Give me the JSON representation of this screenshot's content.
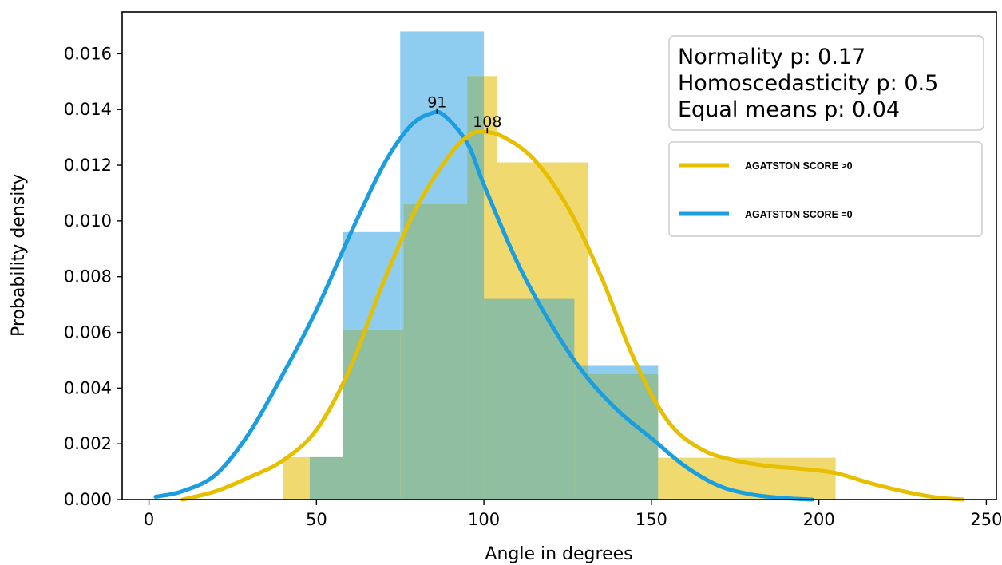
{
  "chart_data": {
    "type": "histogram",
    "xlabel": "Angle in degrees",
    "ylabel": "Probability density",
    "xlim": [
      -8,
      253
    ],
    "ylim": [
      0,
      0.0175
    ],
    "xticks": [
      0,
      50,
      100,
      150,
      200,
      250
    ],
    "yticks": [
      0.0,
      0.002,
      0.004,
      0.006,
      0.008,
      0.01,
      0.012,
      0.014,
      0.016
    ],
    "grid": false,
    "legend_position": "right",
    "stats": [
      "Normality p: 0.17",
      "Homoscedasticity p: 0.5",
      "Equal means p: 0.04"
    ],
    "series": [
      {
        "name": "AGATSTON SCORE =0",
        "color": "#1a9ee0",
        "bar_color": "#8ecdf0",
        "bins": [
          {
            "x0": 48,
            "x1": 58,
            "density": 0.00152
          },
          {
            "x0": 58,
            "x1": 75,
            "density": 0.0096
          },
          {
            "x0": 75,
            "x1": 100,
            "density": 0.0168
          },
          {
            "x0": 100,
            "x1": 127,
            "density": 0.0072
          },
          {
            "x0": 127,
            "x1": 152,
            "density": 0.0048
          }
        ],
        "kde": [
          [
            2,
            0.0001
          ],
          [
            10,
            0.0003
          ],
          [
            20,
            0.0009
          ],
          [
            30,
            0.0024
          ],
          [
            40,
            0.0045
          ],
          [
            50,
            0.0068
          ],
          [
            60,
            0.0095
          ],
          [
            70,
            0.012
          ],
          [
            78,
            0.0134
          ],
          [
            84,
            0.01385
          ],
          [
            88,
            0.0138
          ],
          [
            95,
            0.0128
          ],
          [
            100,
            0.0113
          ],
          [
            110,
            0.0085
          ],
          [
            120,
            0.0063
          ],
          [
            130,
            0.0045
          ],
          [
            140,
            0.0032
          ],
          [
            150,
            0.0022
          ],
          [
            160,
            0.0012
          ],
          [
            170,
            0.0005
          ],
          [
            180,
            0.00018
          ],
          [
            190,
            5e-05
          ],
          [
            198,
            0.0
          ]
        ],
        "peak_label": {
          "text": "91",
          "x": 86,
          "y": 0.0139
        }
      },
      {
        "name": "AGATSTON SCORE >0",
        "color": "#e6c000",
        "bar_color": "#f0d96e",
        "bins": [
          {
            "x0": 40,
            "x1": 58,
            "density": 0.00152
          },
          {
            "x0": 58,
            "x1": 76,
            "density": 0.0061
          },
          {
            "x0": 76,
            "x1": 95,
            "density": 0.0106
          },
          {
            "x0": 95,
            "x1": 104,
            "density": 0.0152
          },
          {
            "x0": 104,
            "x1": 131,
            "density": 0.0121
          },
          {
            "x0": 131,
            "x1": 152,
            "density": 0.0045
          },
          {
            "x0": 152,
            "x1": 205,
            "density": 0.0015
          }
        ],
        "kde": [
          [
            10,
            0.0
          ],
          [
            20,
            0.0003
          ],
          [
            30,
            0.0008
          ],
          [
            40,
            0.0014
          ],
          [
            50,
            0.0025
          ],
          [
            60,
            0.0047
          ],
          [
            70,
            0.0078
          ],
          [
            80,
            0.0105
          ],
          [
            90,
            0.0124
          ],
          [
            96,
            0.0131
          ],
          [
            100,
            0.0132
          ],
          [
            106,
            0.013
          ],
          [
            115,
            0.0122
          ],
          [
            125,
            0.0105
          ],
          [
            135,
            0.008
          ],
          [
            145,
            0.005
          ],
          [
            155,
            0.0028
          ],
          [
            165,
            0.0018
          ],
          [
            175,
            0.0014
          ],
          [
            185,
            0.0012
          ],
          [
            195,
            0.0011
          ],
          [
            205,
            0.00095
          ],
          [
            215,
            0.0006
          ],
          [
            225,
            0.0003
          ],
          [
            235,
            8e-05
          ],
          [
            243,
            0.0
          ]
        ],
        "peak_label": {
          "text": "108",
          "x": 101,
          "y": 0.0132
        }
      }
    ],
    "overlap_color": "#8fbfa0"
  }
}
